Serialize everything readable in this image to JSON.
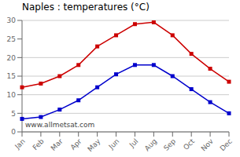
{
  "chart_data": {
    "type": "line",
    "title": "Naples : temperatures (°C)",
    "categories": [
      "Jan",
      "Feb",
      "Mar",
      "Apr",
      "May",
      "Jun",
      "Jul",
      "Aug",
      "Sep",
      "Oct",
      "Nov",
      "Dec"
    ],
    "series": [
      {
        "color": "#cc0000",
        "marker": "square",
        "values": [
          12,
          13,
          15,
          18,
          23,
          26,
          29,
          29.5,
          26,
          21,
          17,
          13.5
        ]
      },
      {
        "color": "#0000cc",
        "marker": "square",
        "values": [
          3.5,
          4,
          6,
          8.5,
          12,
          15.5,
          18,
          18,
          15,
          11.5,
          8,
          5
        ]
      }
    ],
    "ylim": [
      0,
      30
    ],
    "yticks": [
      0,
      5,
      10,
      15,
      20,
      25,
      30
    ],
    "grid": true,
    "annotations": [
      "www.allmetsat.com"
    ]
  }
}
